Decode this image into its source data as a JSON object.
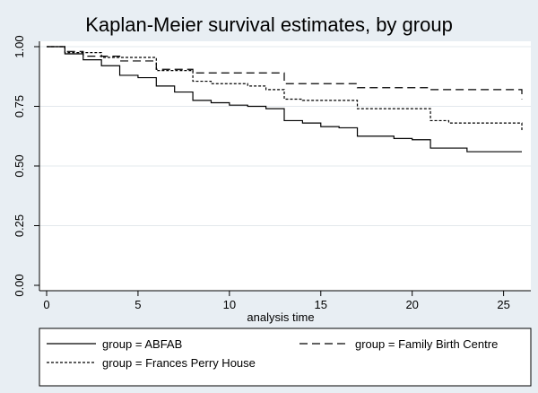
{
  "chart_data": {
    "type": "line",
    "title": "Kaplan-Meier survival estimates, by group",
    "xlabel": "analysis time",
    "ylabel": "",
    "xlim": [
      0,
      26
    ],
    "ylim": [
      0,
      1
    ],
    "xticks": [
      0,
      5,
      10,
      15,
      20,
      25
    ],
    "yticks": [
      0,
      0.25,
      0.5,
      0.75,
      1
    ],
    "ytick_labels": [
      "0.00",
      "0.25",
      "0.50",
      "0.75",
      "1.00"
    ],
    "grid": "horizontal",
    "legend_position": "bottom",
    "series": [
      {
        "name": "group = ABFAB",
        "dash": "solid",
        "color": "#000000",
        "steps": [
          [
            0,
            1.0
          ],
          [
            1,
            0.97
          ],
          [
            2,
            0.945
          ],
          [
            3,
            0.92
          ],
          [
            4,
            0.88
          ],
          [
            5,
            0.87
          ],
          [
            6,
            0.835
          ],
          [
            7,
            0.81
          ],
          [
            8,
            0.775
          ],
          [
            9,
            0.765
          ],
          [
            10,
            0.755
          ],
          [
            11,
            0.75
          ],
          [
            12,
            0.74
          ],
          [
            13,
            0.69
          ],
          [
            14,
            0.68
          ],
          [
            15,
            0.665
          ],
          [
            16,
            0.66
          ],
          [
            17,
            0.625
          ],
          [
            19,
            0.615
          ],
          [
            20,
            0.61
          ],
          [
            21,
            0.575
          ],
          [
            23,
            0.56
          ],
          [
            26,
            0.56
          ]
        ]
      },
      {
        "name": "group = Family Birth Centre",
        "dash": "long",
        "color": "#000000",
        "steps": [
          [
            0,
            1.0
          ],
          [
            1,
            0.98
          ],
          [
            2,
            0.96
          ],
          [
            4,
            0.94
          ],
          [
            6,
            0.905
          ],
          [
            8,
            0.89
          ],
          [
            13,
            0.845
          ],
          [
            17,
            0.828
          ],
          [
            21,
            0.82
          ],
          [
            26,
            0.78
          ]
        ]
      },
      {
        "name": "group = Frances Perry House",
        "dash": "short",
        "color": "#000000",
        "steps": [
          [
            0,
            1.0
          ],
          [
            1,
            0.975
          ],
          [
            3,
            0.955
          ],
          [
            6,
            0.9
          ],
          [
            8,
            0.855
          ],
          [
            9,
            0.845
          ],
          [
            11,
            0.835
          ],
          [
            12,
            0.82
          ],
          [
            13,
            0.78
          ],
          [
            14,
            0.775
          ],
          [
            17,
            0.74
          ],
          [
            21,
            0.69
          ],
          [
            22,
            0.68
          ],
          [
            26,
            0.65
          ]
        ]
      }
    ]
  }
}
